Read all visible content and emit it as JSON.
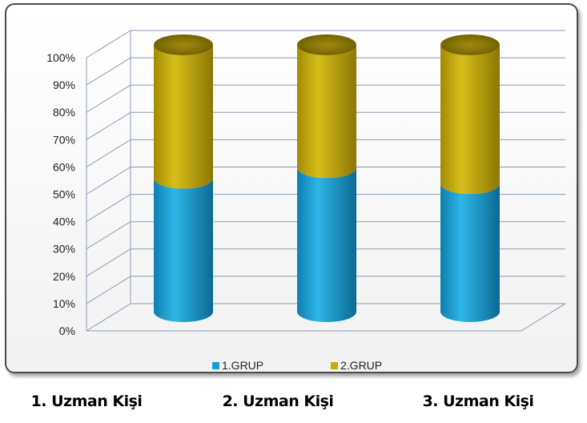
{
  "chart_data": {
    "type": "bar",
    "stacked": true,
    "three_d": true,
    "categories": [
      "1. Uzman Kişi",
      "2. Uzman Kişi",
      "3. Uzman Kişi"
    ],
    "series": [
      {
        "name": "1.GRUP",
        "values": [
          50,
          54,
          48
        ],
        "color": "#1a9fd0"
      },
      {
        "name": "2.GRUP",
        "values": [
          50,
          46,
          52
        ],
        "color": "#c9ad0a"
      }
    ],
    "y_ticks": [
      "0%",
      "10%",
      "20%",
      "30%",
      "40%",
      "50%",
      "60%",
      "70%",
      "80%",
      "90%",
      "100%"
    ],
    "ylim": [
      0,
      100
    ],
    "grid": true,
    "legend_position": "bottom"
  }
}
